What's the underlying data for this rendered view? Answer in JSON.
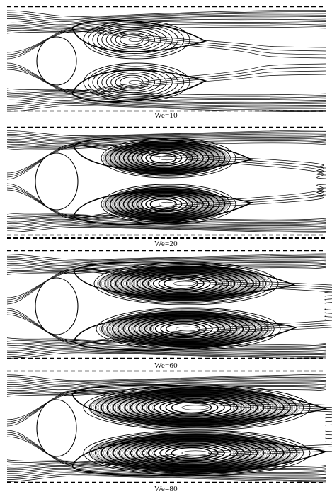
{
  "figure": {
    "panels": [
      {
        "label": "We=10"
      },
      {
        "label": "We=20"
      },
      {
        "label": "We=60"
      },
      {
        "label": "We=80"
      }
    ]
  }
}
